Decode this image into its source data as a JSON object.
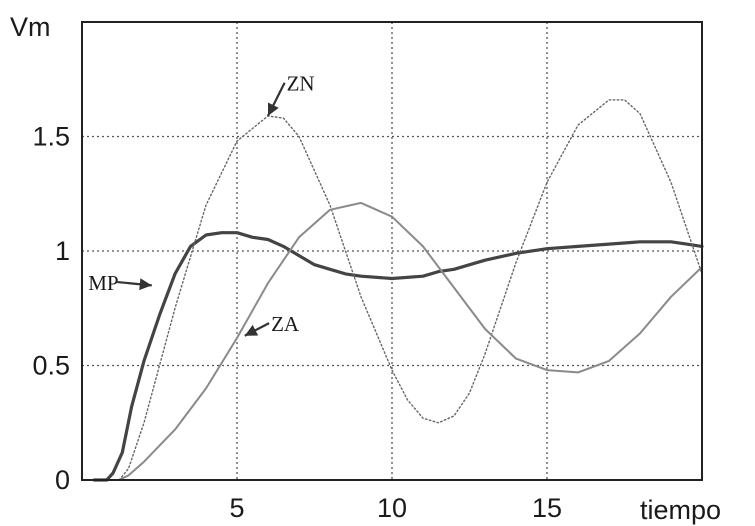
{
  "chart_data": {
    "type": "line",
    "title": "",
    "xlabel": "tiempo",
    "ylabel": "Vm",
    "xlim": [
      0,
      20
    ],
    "ylim": [
      0,
      2
    ],
    "grid": true,
    "legend": "none",
    "x_ticks": [
      {
        "value": 5,
        "label": "5"
      },
      {
        "value": 10,
        "label": "10"
      },
      {
        "value": 15,
        "label": "15"
      }
    ],
    "y_ticks": [
      {
        "value": 0,
        "label": "0"
      },
      {
        "value": 0.5,
        "label": "0.5"
      },
      {
        "value": 1,
        "label": "1"
      },
      {
        "value": 1.5,
        "label": "1.5"
      }
    ],
    "series": [
      {
        "name": "MP",
        "style": "thick-dark",
        "color": "#444444",
        "points": [
          [
            0.4,
            0
          ],
          [
            0.8,
            0
          ],
          [
            1.0,
            0.03
          ],
          [
            1.3,
            0.12
          ],
          [
            1.6,
            0.32
          ],
          [
            2.0,
            0.52
          ],
          [
            2.5,
            0.72
          ],
          [
            3.0,
            0.9
          ],
          [
            3.5,
            1.02
          ],
          [
            4.0,
            1.07
          ],
          [
            4.5,
            1.08
          ],
          [
            5.0,
            1.08
          ],
          [
            5.5,
            1.06
          ],
          [
            6.0,
            1.05
          ],
          [
            6.5,
            1.02
          ],
          [
            7.0,
            0.98
          ],
          [
            7.5,
            0.94
          ],
          [
            8.0,
            0.92
          ],
          [
            8.5,
            0.9
          ],
          [
            9.0,
            0.89
          ],
          [
            10.0,
            0.88
          ],
          [
            11.0,
            0.89
          ],
          [
            11.5,
            0.91
          ],
          [
            12.0,
            0.92
          ],
          [
            13.0,
            0.96
          ],
          [
            14.0,
            0.99
          ],
          [
            15.0,
            1.01
          ],
          [
            16.0,
            1.02
          ],
          [
            17.0,
            1.03
          ],
          [
            18.0,
            1.04
          ],
          [
            19.0,
            1.04
          ],
          [
            19.5,
            1.03
          ],
          [
            20.0,
            1.02
          ]
        ]
      },
      {
        "name": "ZN",
        "style": "dotted",
        "color": "#666666",
        "points": [
          [
            1.2,
            0
          ],
          [
            1.5,
            0.05
          ],
          [
            2.0,
            0.25
          ],
          [
            3.0,
            0.75
          ],
          [
            4.0,
            1.2
          ],
          [
            5.0,
            1.48
          ],
          [
            6.0,
            1.59
          ],
          [
            6.5,
            1.58
          ],
          [
            7.0,
            1.5
          ],
          [
            8.0,
            1.2
          ],
          [
            9.0,
            0.8
          ],
          [
            10.0,
            0.48
          ],
          [
            10.5,
            0.35
          ],
          [
            11.0,
            0.27
          ],
          [
            11.5,
            0.25
          ],
          [
            12.0,
            0.28
          ],
          [
            12.5,
            0.38
          ],
          [
            13.0,
            0.55
          ],
          [
            14.0,
            0.95
          ],
          [
            15.0,
            1.3
          ],
          [
            16.0,
            1.55
          ],
          [
            17.0,
            1.66
          ],
          [
            17.5,
            1.66
          ],
          [
            18.0,
            1.6
          ],
          [
            19.0,
            1.3
          ],
          [
            19.5,
            1.1
          ],
          [
            20.0,
            0.9
          ]
        ]
      },
      {
        "name": "ZA",
        "style": "thin-gray",
        "color": "#8a8a8a",
        "points": [
          [
            1.2,
            0
          ],
          [
            1.5,
            0.02
          ],
          [
            2.0,
            0.08
          ],
          [
            3.0,
            0.22
          ],
          [
            4.0,
            0.4
          ],
          [
            5.0,
            0.62
          ],
          [
            6.0,
            0.86
          ],
          [
            7.0,
            1.06
          ],
          [
            8.0,
            1.18
          ],
          [
            9.0,
            1.21
          ],
          [
            10.0,
            1.15
          ],
          [
            11.0,
            1.02
          ],
          [
            12.0,
            0.84
          ],
          [
            13.0,
            0.66
          ],
          [
            14.0,
            0.53
          ],
          [
            15.0,
            0.48
          ],
          [
            16.0,
            0.47
          ],
          [
            17.0,
            0.52
          ],
          [
            18.0,
            0.64
          ],
          [
            19.0,
            0.8
          ],
          [
            20.0,
            0.93
          ]
        ]
      }
    ],
    "annotations": [
      {
        "text": "ZN",
        "x": 6.6,
        "y": 1.7,
        "arrow_to": [
          6.0,
          1.59
        ]
      },
      {
        "text": "MP",
        "x": 0.2,
        "y": 0.83,
        "arrow_to": [
          2.25,
          0.85
        ]
      },
      {
        "text": "ZA",
        "x": 6.1,
        "y": 0.65,
        "arrow_to": [
          5.25,
          0.63
        ]
      }
    ]
  }
}
